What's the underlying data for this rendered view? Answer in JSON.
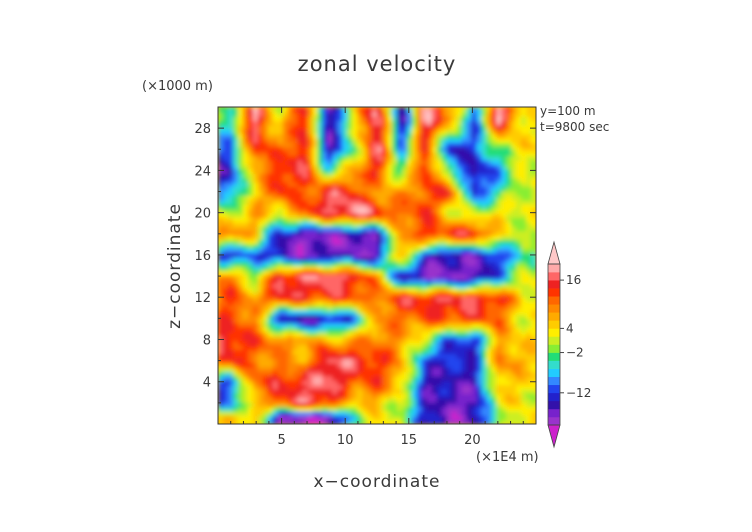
{
  "chart_data": {
    "type": "heatmap",
    "title": "zonal velocity",
    "xlabel": "x−coordinate",
    "ylabel": "z−coordinate",
    "x_unit": "(×1E4 m)",
    "y_unit": "(×1000 m)",
    "annotations": [
      "y=100 m",
      "t=9800 sec"
    ],
    "xlim": [
      0,
      25
    ],
    "ylim": [
      0,
      30
    ],
    "xticks": [
      5,
      10,
      15,
      20
    ],
    "yticks": [
      4,
      8,
      12,
      16,
      20,
      24,
      28
    ],
    "colorbar": {
      "min": -22,
      "max": 22,
      "tick_values": [
        16,
        4,
        -2,
        -12
      ],
      "tick_labels": [
        "16",
        "4",
        "−2",
        "−12"
      ],
      "levels": [
        -22,
        -20,
        -18,
        -16,
        -14,
        -12,
        -10,
        -8,
        -6,
        -4,
        -2,
        0,
        2,
        4,
        6,
        8,
        10,
        12,
        14,
        16,
        18,
        20,
        22
      ],
      "colors": [
        "#cc22cc",
        "#9933cc",
        "#7722cc",
        "#3311aa",
        "#2222cc",
        "#2244ee",
        "#3388ff",
        "#22ccff",
        "#33ddcc",
        "#22dd77",
        "#88ee33",
        "#ccee22",
        "#ffee00",
        "#ffcc00",
        "#ffaa00",
        "#ff8800",
        "#ff6600",
        "#ff3300",
        "#ee2222",
        "#ff6666",
        "#ffaaaa",
        "#ffc8c8"
      ]
    },
    "bands": [
      {
        "z": 29,
        "values": [
          -4,
          18,
          0,
          18,
          -18,
          2,
          20,
          -18,
          19,
          10,
          -12,
          20,
          2
        ]
      },
      {
        "z": 26,
        "values": [
          -10,
          14,
          10,
          16,
          -16,
          -4,
          18,
          -8,
          14,
          -16,
          -10,
          -2,
          4
        ]
      },
      {
        "z": 24,
        "values": [
          -14,
          6,
          14,
          16,
          -4,
          8,
          14,
          -4,
          16,
          -4,
          -16,
          -8,
          2
        ]
      },
      {
        "z": 22,
        "values": [
          -10,
          4,
          14,
          10,
          16,
          14,
          6,
          8,
          12,
          14,
          -14,
          -4,
          2
        ]
      },
      {
        "z": 20,
        "values": [
          0,
          8,
          2,
          12,
          16,
          20,
          16,
          10,
          14,
          2,
          0,
          4,
          2
        ]
      },
      {
        "z": 18,
        "values": [
          10,
          6,
          -14,
          -18,
          -18,
          -18,
          -16,
          8,
          14,
          14,
          16,
          4,
          0
        ]
      },
      {
        "z": 16,
        "values": [
          -14,
          -10,
          -16,
          -18,
          -16,
          -16,
          -18,
          10,
          -14,
          -16,
          -16,
          -12,
          -4
        ]
      },
      {
        "z": 14,
        "values": [
          10,
          -2,
          16,
          16,
          18,
          16,
          8,
          -16,
          -18,
          -18,
          -18,
          -10,
          2
        ]
      },
      {
        "z": 12,
        "values": [
          12,
          8,
          16,
          14,
          14,
          12,
          10,
          14,
          16,
          16,
          16,
          14,
          4
        ]
      },
      {
        "z": 10,
        "values": [
          12,
          10,
          -16,
          -18,
          -16,
          -12,
          8,
          10,
          12,
          12,
          14,
          10,
          2
        ]
      },
      {
        "z": 8,
        "values": [
          16,
          12,
          10,
          8,
          6,
          8,
          10,
          8,
          0,
          -12,
          -14,
          8,
          4
        ]
      },
      {
        "z": 6,
        "values": [
          14,
          10,
          8,
          6,
          18,
          16,
          14,
          8,
          -12,
          -14,
          -12,
          10,
          6
        ]
      },
      {
        "z": 4,
        "values": [
          -12,
          12,
          14,
          16,
          18,
          12,
          12,
          6,
          -16,
          -14,
          -16,
          6,
          4
        ]
      },
      {
        "z": 2,
        "values": [
          -10,
          4,
          12,
          16,
          14,
          4,
          6,
          0,
          -14,
          -16,
          -18,
          4,
          2
        ]
      },
      {
        "z": 0.7,
        "values": [
          4,
          6,
          -18,
          -18,
          -20,
          -4,
          4,
          0,
          -14,
          -18,
          -16,
          -2,
          4
        ]
      }
    ]
  }
}
